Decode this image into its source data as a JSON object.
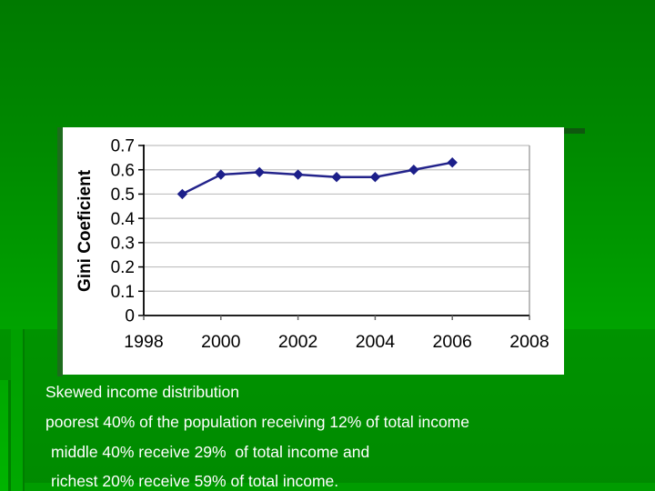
{
  "slide": {
    "caption": {
      "lines": [
        "Skewed income distribution",
        "poorest 40% of the population receiving 12% of total income",
        "middle 40% receive 29%  of total income and",
        "richest 20% receive 59% of total income."
      ]
    },
    "colors": {
      "background_green_top": "#007a00",
      "background_green_bright": "#00a300",
      "caption_text": "#ffffff"
    }
  },
  "chart_data": {
    "type": "line",
    "title": "",
    "xlabel": "",
    "ylabel": "Gini Coeficient",
    "x": [
      1999,
      2000,
      2001,
      2002,
      2003,
      2004,
      2005,
      2006
    ],
    "y": [
      0.5,
      0.58,
      0.59,
      0.58,
      0.57,
      0.57,
      0.6,
      0.63
    ],
    "xlim": [
      1998,
      2008
    ],
    "ylim": [
      0,
      0.7
    ],
    "xticks": [
      1998,
      2000,
      2002,
      2004,
      2006,
      2008
    ],
    "ytick_labels": [
      "0",
      "0.1",
      "0.2",
      "0.3",
      "0.4",
      "0.5",
      "0.6",
      "0.7"
    ],
    "grid": true,
    "legend": false,
    "marker": "diamond",
    "line_color": "#23238b",
    "marker_color": "#1c1f8a",
    "gridline_color": "#c0c0c0",
    "axis_color": "#000000",
    "plot_border_color": "#909090"
  }
}
